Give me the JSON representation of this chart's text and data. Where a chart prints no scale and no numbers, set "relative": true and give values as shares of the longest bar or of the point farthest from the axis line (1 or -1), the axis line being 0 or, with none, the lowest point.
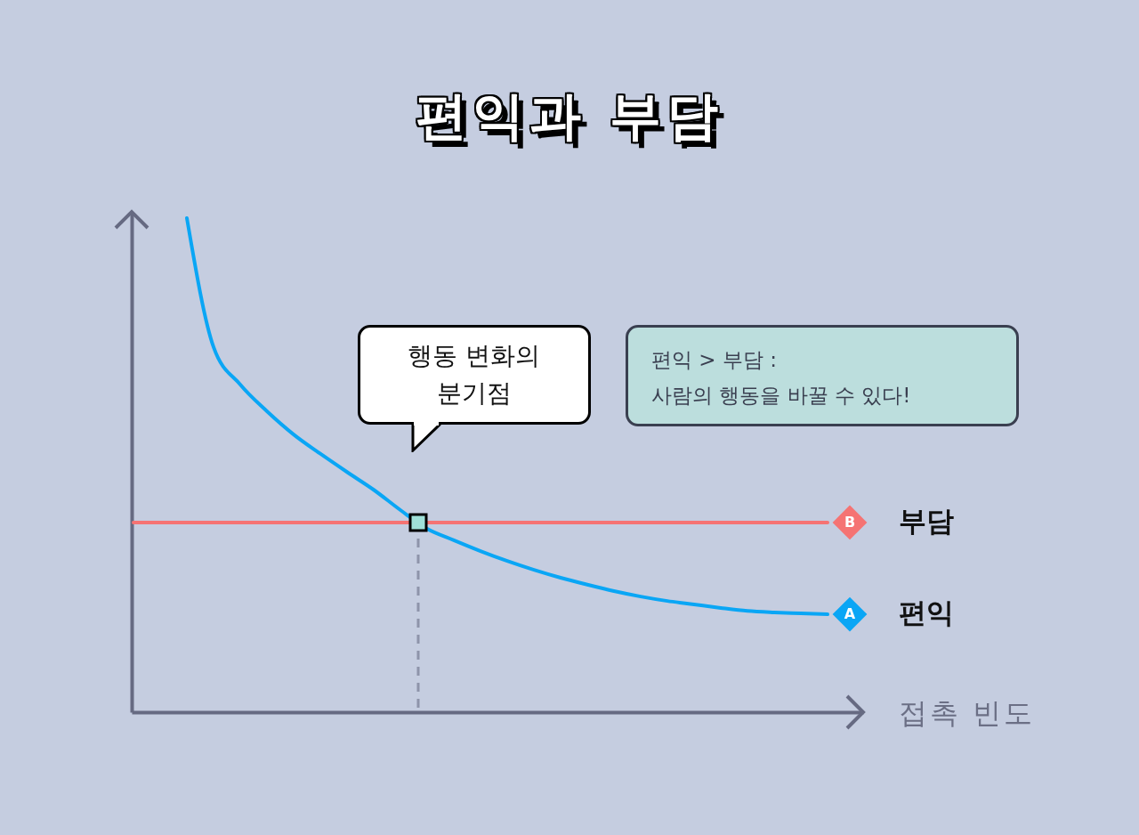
{
  "chart_data": {
    "type": "line",
    "title": "편익과 부담",
    "xlabel": "접촉 빈도",
    "relative": true,
    "categories": [
      null,
      null,
      null,
      null,
      null,
      null,
      null,
      null,
      null,
      null,
      null,
      null,
      null,
      null,
      null,
      null,
      null,
      null,
      null,
      null,
      null,
      null,
      null,
      null,
      null,
      null,
      null
    ],
    "series": [
      {
        "name": "부담",
        "color": "#f57373",
        "values": [
          0.384,
          0.384,
          0.384,
          0.384,
          0.384,
          0.384,
          0.384,
          0.384,
          0.384,
          0.384,
          0.384,
          0.384,
          0.384,
          0.384,
          0.384,
          0.384,
          0.384,
          0.384,
          0.384,
          0.384,
          0.384,
          0.384,
          0.384,
          0.384,
          0.384,
          0.384,
          0.384
        ]
      },
      {
        "name": "편익",
        "color": "#0aa6f5",
        "values": [
          null,
          null,
          1.0,
          0.739,
          0.663,
          0.609,
          0.562,
          0.523,
          0.486,
          0.45,
          0.409,
          0.371,
          0.348,
          0.326,
          0.306,
          0.288,
          0.272,
          0.258,
          0.245,
          0.234,
          0.225,
          0.218,
          0.211,
          0.205,
          0.202,
          0.2,
          0.198
        ]
      }
    ],
    "annotations": [
      "행동 변화의 분기점",
      "편익 > 부담 :\n사람의 행동을 바꿀 수 있다!",
      "B",
      "A"
    ],
    "line_style": "solid",
    "grid": false,
    "legend": "right"
  }
}
